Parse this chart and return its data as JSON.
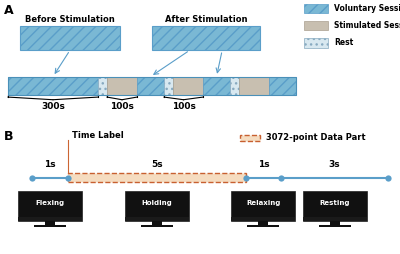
{
  "panel_A_label": "A",
  "panel_B_label": "B",
  "before_stim_label": "Before Stimulation",
  "after_stim_label": "After Stimulation",
  "legend_items": [
    "Voluntary Session",
    "Stimulated Session",
    "Rest"
  ],
  "label_300": "300s",
  "label_100a": "100s",
  "label_100b": "100s",
  "time_label": "Time Label",
  "data_part_label": "3072-point Data Part",
  "phase_labels": [
    "1s",
    "5s",
    "1s",
    "3s"
  ],
  "phase_names": [
    "Flexing",
    "Holding",
    "Relaxing",
    "Resting"
  ],
  "color_voluntary": "#7ab8d4",
  "color_stimulated": "#c8bfb0",
  "color_rest": "#d8e8f0",
  "bg_color": "#ffffff",
  "line_color": "#5a9ec9",
  "orange_label_color": "#cc6633",
  "hatch_vol": "///",
  "hatch_rest": "...",
  "bar_segments": [
    {
      "type": "vol",
      "weight": 3.0
    },
    {
      "type": "rest",
      "weight": 0.3
    },
    {
      "type": "stim",
      "weight": 1.0
    },
    {
      "type": "vol",
      "weight": 0.9
    },
    {
      "type": "rest",
      "weight": 0.3
    },
    {
      "type": "stim",
      "weight": 1.0
    },
    {
      "type": "vol",
      "weight": 0.9
    },
    {
      "type": "rest",
      "weight": 0.3
    },
    {
      "type": "stim",
      "weight": 1.0
    },
    {
      "type": "vol",
      "weight": 0.9
    }
  ],
  "phase_durations": [
    1,
    5,
    1,
    3
  ],
  "phase_total": 10
}
